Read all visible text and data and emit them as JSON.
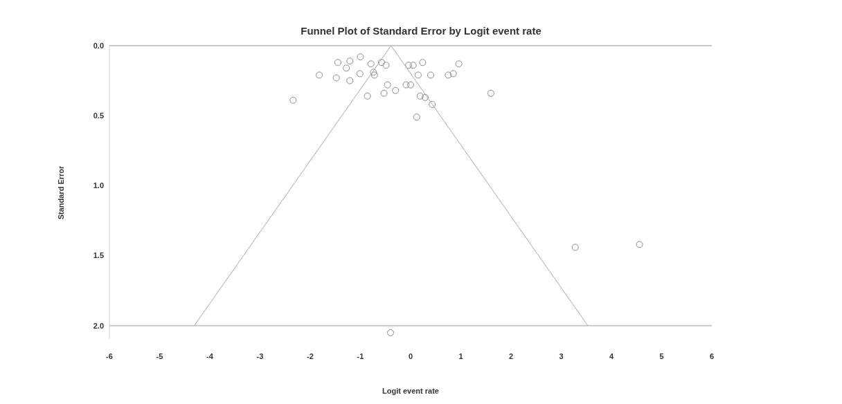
{
  "chart_data": {
    "type": "scatter",
    "title": "Funnel Plot of Standard Error by Logit event rate",
    "xlabel": "Logit event rate",
    "ylabel": "Standard Error",
    "xlim": [
      -6,
      6
    ],
    "xticks": [
      {
        "value": -6,
        "label": "-6"
      },
      -5,
      -4,
      -3,
      -2,
      -1,
      0,
      1,
      2,
      3,
      4,
      5,
      6
    ],
    "ylim": [
      2.1,
      0
    ],
    "yticks": [
      {
        "value": 0,
        "label": "0.0"
      },
      0.5,
      {
        "value": 1,
        "label": "1.0"
      },
      1.5,
      {
        "value": 2,
        "label": "2.0"
      }
    ],
    "grid": false,
    "legend": false,
    "marker": "circle",
    "ref_lines": [
      {
        "axis": "y",
        "value": 2,
        "color": "#c8c8c8"
      }
    ],
    "series": [
      {
        "color": "#8a8a8a",
        "x": [
          -1.45,
          -1.21,
          -1.0,
          -1.28,
          -0.79,
          -0.58,
          -0.49,
          -1.82,
          -1.48,
          -1.21,
          -1.01,
          -0.74,
          -0.72,
          -2.34,
          -0.86,
          -0.53,
          -0.46,
          -0.3,
          -0.09,
          0.0,
          -0.04,
          0.05,
          0.24,
          0.15,
          0.4,
          0.75,
          0.85,
          0.96,
          0.19,
          0.29,
          0.43,
          0.12,
          1.6,
          3.28,
          4.56,
          -0.4
        ],
        "values": [
          0.12,
          0.11,
          0.08,
          0.16,
          0.13,
          0.12,
          0.14,
          0.21,
          0.23,
          0.25,
          0.2,
          0.19,
          0.21,
          0.39,
          0.36,
          0.34,
          0.28,
          0.32,
          0.28,
          0.28,
          0.14,
          0.14,
          0.12,
          0.21,
          0.21,
          0.21,
          0.2,
          0.13,
          0.36,
          0.37,
          0.42,
          0.51,
          0.34,
          1.44,
          1.42,
          2.05
        ]
      },
      {
        "type": "line",
        "marker": "none",
        "color": "#a8a8a8",
        "x": [
          -0.39,
          -4.31
        ],
        "values": [
          0,
          2
        ]
      },
      {
        "type": "line",
        "marker": "none",
        "color": "#a8a8a8",
        "x": [
          -0.39,
          3.53
        ],
        "values": [
          0,
          2
        ]
      }
    ]
  }
}
